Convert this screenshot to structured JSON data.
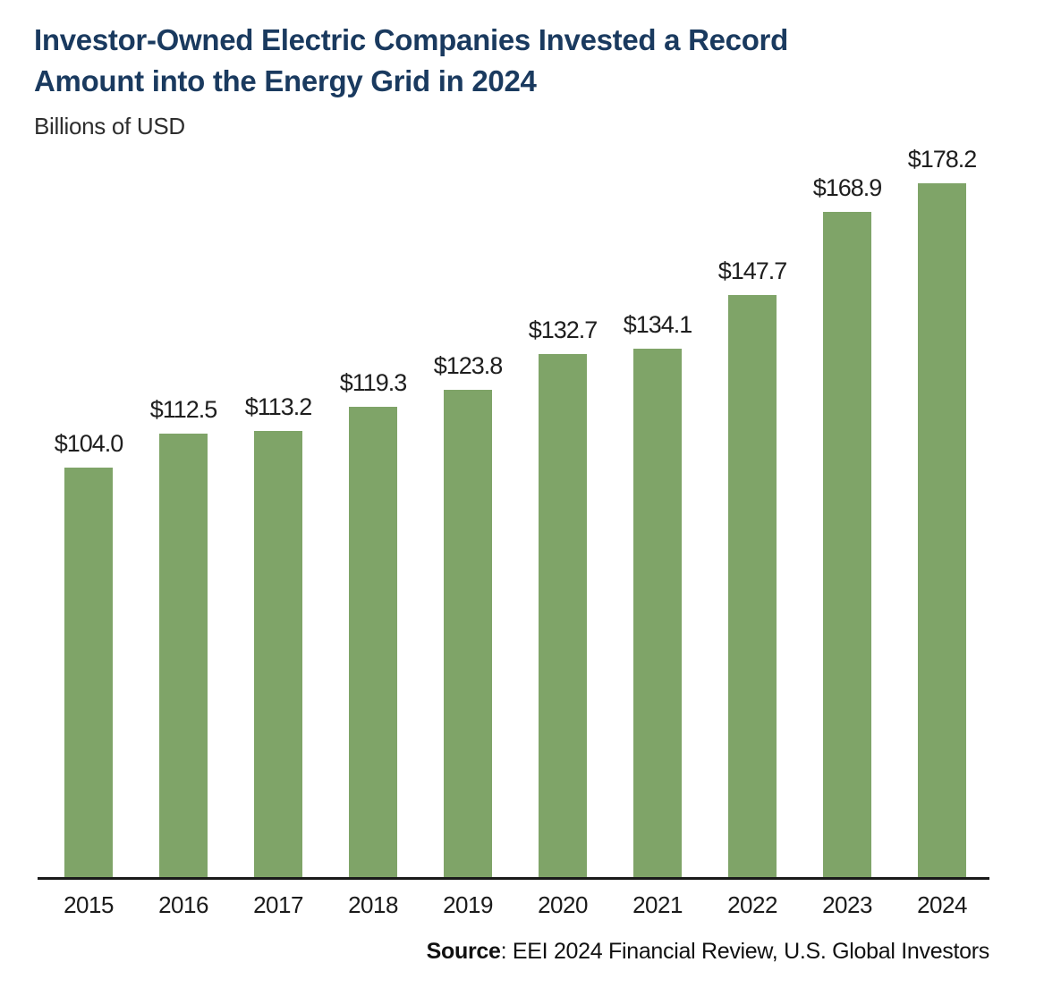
{
  "header": {
    "title_line1": "Investor-Owned Electric Companies Invested a Record",
    "title_line2": "Amount into the Energy Grid in 2024",
    "subtitle": "Billions of USD"
  },
  "chart_data": {
    "type": "bar",
    "title": "Investor-Owned Electric Companies Invested a Record Amount into the Energy Grid in 2024",
    "xlabel": "",
    "ylabel": "Billions of USD",
    "categories": [
      "2015",
      "2016",
      "2017",
      "2018",
      "2019",
      "2020",
      "2021",
      "2022",
      "2023",
      "2024"
    ],
    "values": [
      104.0,
      112.5,
      113.2,
      119.3,
      123.8,
      132.7,
      134.1,
      147.7,
      168.9,
      178.2
    ],
    "value_labels": [
      "$104.0",
      "$112.5",
      "$113.2",
      "$119.3",
      "$123.8",
      "$132.7",
      "$134.1",
      "$147.7",
      "$168.9",
      "$178.2"
    ],
    "ylim": [
      0,
      185
    ],
    "grid": false,
    "legend": false,
    "bar_color": "#7fa468"
  },
  "footer": {
    "source_label": "Source",
    "source_rest": ": EEI 2024 Financial Review, U.S. Global Investors"
  },
  "colors": {
    "title": "#1a3a5f",
    "bar": "#7fa468",
    "axis": "#1a1a1a",
    "text": "#1e1e1e"
  }
}
